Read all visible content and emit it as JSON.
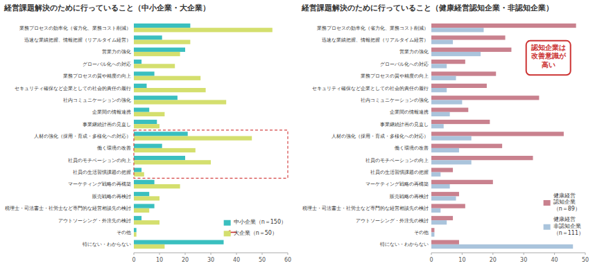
{
  "chart_data": [
    {
      "type": "bar",
      "orientation": "horizontal",
      "title": "経営課題解決のために行っていること（中小企業・大企業）",
      "categories": [
        "業務プロセスの効率化（省力化、業務コスト削減）",
        "迅速な業績把握、情報把握（リアルタイム経営）",
        "営業力の強化",
        "グローバル化への対応",
        "業務プロセスの質や精度の向上",
        "セキュリティ確保など企業としての社会的責任の履行",
        "社内コミュニケーションの強化",
        "企業間の情報連携",
        "事業継続計画の見直し",
        "人材の強化（採用・育成・多様化への対応）",
        "働く環境の改善",
        "社員のモチベーションの向上",
        "社員の生活習慣課題の把握",
        "マーケティング戦略の再構築",
        "販売戦略の再検討",
        "税理士・司法書士・社労士など専門的な経営相談先の検討",
        "アウトソーシング・外注先の検討",
        "その他",
        "特にない・わからない"
      ],
      "series": [
        {
          "name": "中小企業（n＝150）",
          "color": "#3abfbf",
          "values": [
            22,
            11,
            20,
            3,
            8,
            5,
            17,
            6,
            9,
            21,
            11,
            20,
            3,
            8,
            6,
            8,
            3,
            1,
            35
          ]
        },
        {
          "name": "大企業（n＝50）",
          "color": "#d4df6e",
          "values": [
            54,
            22,
            18,
            16,
            26,
            28,
            36,
            12,
            10,
            46,
            24,
            30,
            4,
            18,
            10,
            6,
            10,
            1,
            12
          ]
        }
      ],
      "xlim": [
        0,
        60
      ],
      "xticks": [
        0,
        10,
        20,
        30,
        40,
        50,
        60
      ],
      "grid": false,
      "legend": "lower right"
    },
    {
      "type": "bar",
      "orientation": "horizontal",
      "title": "経営課題解決のために行っていること（健康経営認知企業・非認知企業）",
      "categories": [
        "業務プロセスの効率化（省力化、業務コスト削減）",
        "迅速な業績把握、情報把握（リアルタイム経営）",
        "営業力の強化",
        "グローバル化への対応",
        "業務プロセスの質や精度の向上",
        "セキュリティ確保など企業としての社会的責任の履行",
        "社内コミュニケーションの強化",
        "企業間の情報連携",
        "事業継続計画の見直し",
        "人材の強化（採用・育成・多様化への対応）",
        "働く環境の改善",
        "社員のモチベーションの向上",
        "社員の生活習慣課題の把握",
        "マーケティング戦略の再構築",
        "販売戦略の再検討",
        "税理士・司法書士・社労士など専門的な経営相談先の検討",
        "アウトソーシング・外注先の検討",
        "その他",
        "特にない・わからない"
      ],
      "series": [
        {
          "name": "健康経営\n認知企業\n（n＝89）",
          "color": "#c9818e",
          "values": [
            47,
            24,
            26,
            11,
            21,
            18,
            35,
            12,
            19,
            43,
            23,
            33,
            7,
            20,
            9,
            11,
            7,
            1,
            9
          ]
        },
        {
          "name": "健康経営\n非認知企業\n（n＝111）",
          "color": "#aac4dc",
          "values": [
            17,
            7,
            16,
            5,
            8,
            5,
            10,
            6,
            4,
            13,
            9,
            13,
            3,
            6,
            8,
            3,
            5,
            1,
            46
          ]
        }
      ],
      "xlim": [
        0,
        50
      ],
      "xticks": [
        0,
        10,
        20,
        30,
        40,
        50
      ],
      "grid": false,
      "legend": "lower right",
      "annotations": [
        "認知企業は\n改善意識が\n高い"
      ]
    }
  ]
}
